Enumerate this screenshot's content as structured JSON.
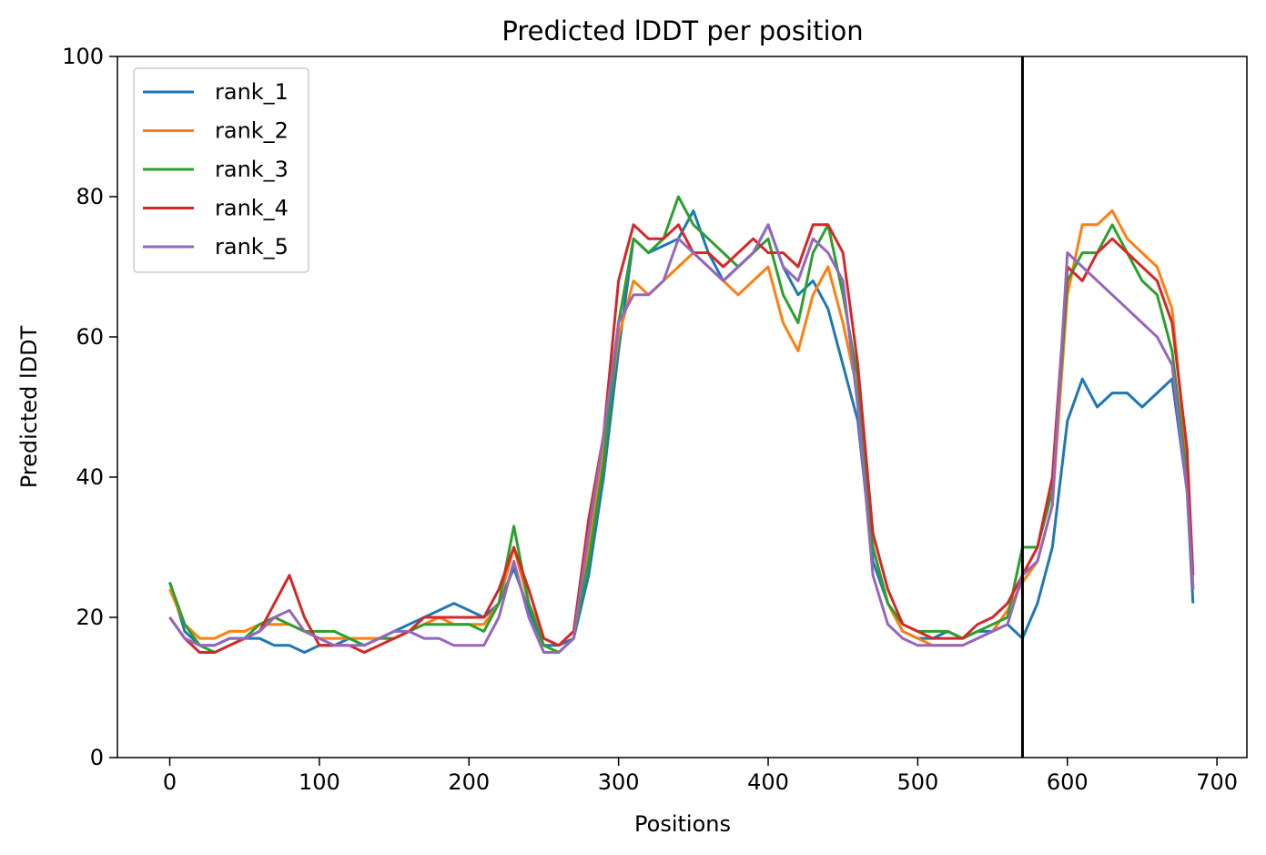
{
  "chart_data": {
    "type": "line",
    "title": "Predicted lDDT per position",
    "xlabel": "Positions",
    "ylabel": "Predicted lDDT",
    "xlim": [
      -35,
      720
    ],
    "ylim": [
      0,
      100
    ],
    "xticks": [
      0,
      100,
      200,
      300,
      400,
      500,
      600,
      700
    ],
    "yticks": [
      0,
      20,
      40,
      60,
      80,
      100
    ],
    "legend_position": "upper-left",
    "grid": false,
    "vertical_line_x": 570,
    "x": [
      0,
      10,
      20,
      30,
      40,
      50,
      60,
      70,
      80,
      90,
      100,
      110,
      120,
      130,
      140,
      150,
      160,
      170,
      180,
      190,
      200,
      210,
      220,
      230,
      240,
      250,
      260,
      270,
      280,
      290,
      300,
      310,
      320,
      330,
      340,
      350,
      360,
      370,
      380,
      390,
      400,
      410,
      420,
      430,
      440,
      450,
      460,
      470,
      480,
      490,
      500,
      510,
      520,
      530,
      540,
      550,
      560,
      570,
      580,
      590,
      600,
      610,
      620,
      630,
      640,
      650,
      660,
      670,
      680,
      684
    ],
    "series": [
      {
        "name": "rank_1",
        "color": "#1f77b4",
        "values": [
          25,
          18,
          16,
          16,
          17,
          17,
          17,
          16,
          16,
          15,
          16,
          16,
          17,
          16,
          17,
          18,
          19,
          20,
          21,
          22,
          21,
          20,
          22,
          27,
          21,
          16,
          16,
          17,
          26,
          40,
          58,
          74,
          72,
          73,
          74,
          78,
          72,
          68,
          70,
          72,
          76,
          70,
          66,
          68,
          64,
          56,
          48,
          28,
          22,
          18,
          17,
          17,
          18,
          17,
          18,
          18,
          19,
          17,
          22,
          30,
          48,
          54,
          50,
          52,
          52,
          50,
          52,
          54,
          38,
          22
        ]
      },
      {
        "name": "rank_2",
        "color": "#ff7f0e",
        "values": [
          24,
          19,
          17,
          17,
          18,
          18,
          19,
          19,
          19,
          18,
          17,
          17,
          17,
          17,
          17,
          17,
          18,
          19,
          20,
          19,
          19,
          19,
          22,
          30,
          22,
          17,
          16,
          18,
          30,
          44,
          60,
          68,
          66,
          68,
          70,
          72,
          70,
          68,
          66,
          68,
          70,
          62,
          58,
          66,
          70,
          62,
          52,
          30,
          22,
          18,
          17,
          16,
          16,
          16,
          17,
          18,
          21,
          25,
          28,
          36,
          66,
          76,
          76,
          78,
          74,
          72,
          70,
          64,
          42,
          24
        ]
      },
      {
        "name": "rank_3",
        "color": "#2ca02c",
        "values": [
          25,
          19,
          16,
          15,
          16,
          17,
          19,
          20,
          19,
          18,
          18,
          18,
          17,
          16,
          17,
          17,
          18,
          19,
          19,
          19,
          19,
          18,
          22,
          33,
          22,
          16,
          15,
          17,
          28,
          42,
          62,
          74,
          72,
          74,
          80,
          76,
          74,
          72,
          70,
          72,
          74,
          66,
          62,
          72,
          76,
          66,
          54,
          30,
          22,
          19,
          18,
          18,
          18,
          17,
          18,
          19,
          20,
          30,
          30,
          38,
          68,
          72,
          72,
          76,
          72,
          68,
          66,
          58,
          40,
          24
        ]
      },
      {
        "name": "rank_4",
        "color": "#d62728",
        "values": [
          20,
          17,
          15,
          15,
          16,
          17,
          18,
          22,
          26,
          20,
          16,
          16,
          16,
          15,
          16,
          17,
          18,
          20,
          20,
          20,
          20,
          20,
          24,
          30,
          24,
          17,
          16,
          18,
          34,
          46,
          68,
          76,
          74,
          74,
          76,
          72,
          72,
          70,
          72,
          74,
          72,
          72,
          70,
          76,
          76,
          72,
          56,
          32,
          24,
          19,
          18,
          17,
          17,
          17,
          19,
          20,
          22,
          26,
          30,
          40,
          70,
          68,
          72,
          74,
          72,
          70,
          68,
          62,
          44,
          26
        ]
      },
      {
        "name": "rank_5",
        "color": "#9467bd",
        "values": [
          20,
          17,
          16,
          16,
          17,
          17,
          18,
          20,
          21,
          18,
          17,
          16,
          16,
          16,
          17,
          18,
          18,
          17,
          17,
          16,
          16,
          16,
          20,
          28,
          20,
          15,
          15,
          17,
          32,
          46,
          62,
          66,
          66,
          68,
          74,
          72,
          70,
          68,
          70,
          72,
          76,
          70,
          68,
          74,
          72,
          68,
          50,
          26,
          19,
          17,
          16,
          16,
          16,
          16,
          17,
          18,
          19,
          26,
          28,
          36,
          72,
          70,
          68,
          66,
          64,
          62,
          60,
          56,
          38,
          24
        ]
      }
    ]
  }
}
